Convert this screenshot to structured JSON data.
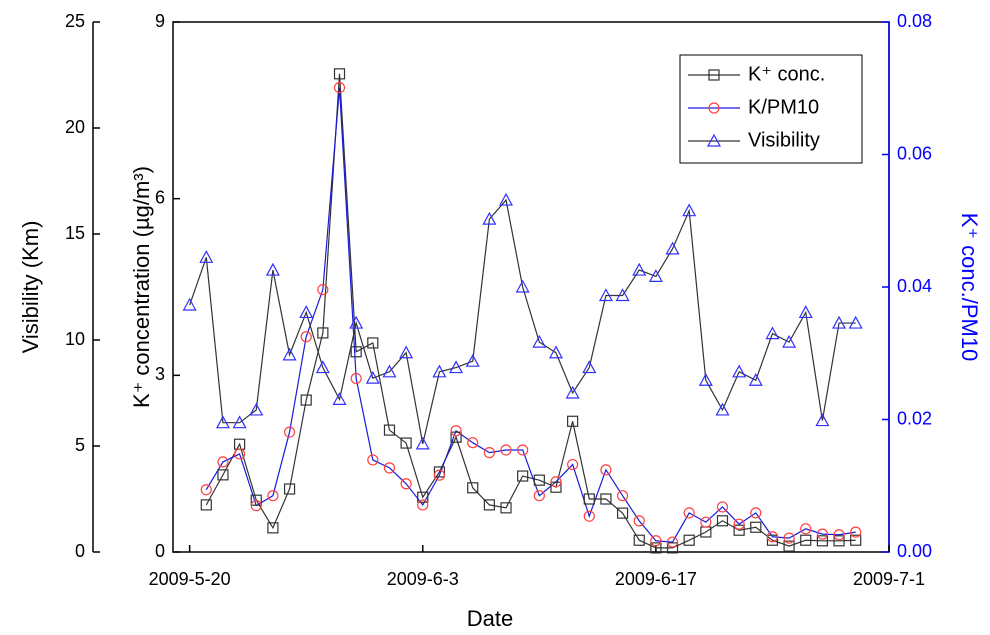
{
  "chart_data": {
    "type": "line",
    "x_label": "Date",
    "y_label": "K⁺ concentration (µg/m³)",
    "y2_label": "K⁺ conc./PM10",
    "y3_label": "Visibility (Km)",
    "x": [
      "2009-5-20",
      "2009-5-21",
      "2009-5-22",
      "2009-5-23",
      "2009-5-24",
      "2009-5-25",
      "2009-5-26",
      "2009-5-27",
      "2009-5-28",
      "2009-5-29",
      "2009-5-30",
      "2009-5-31",
      "2009-6-1",
      "2009-6-2",
      "2009-6-3",
      "2009-6-4",
      "2009-6-5",
      "2009-6-6",
      "2009-6-7",
      "2009-6-8",
      "2009-6-9",
      "2009-6-10",
      "2009-6-11",
      "2009-6-12",
      "2009-6-13",
      "2009-6-14",
      "2009-6-15",
      "2009-6-16",
      "2009-6-17",
      "2009-6-18",
      "2009-6-19",
      "2009-6-20",
      "2009-6-21",
      "2009-6-22",
      "2009-6-23",
      "2009-6-24",
      "2009-6-25",
      "2009-6-26",
      "2009-6-27",
      "2009-6-28",
      "2009-6-29"
    ],
    "xlim": [
      "2009-5-19",
      "2009-7-1"
    ],
    "xticks": [
      "2009-5-20",
      "2009-6-3",
      "2009-6-17",
      "2009-7-1"
    ],
    "ylim": [
      0,
      9
    ],
    "yticks": [
      0,
      3,
      6,
      9
    ],
    "y2lim": [
      0,
      0.08
    ],
    "y2ticks": [
      {
        "value": 0,
        "label": "0.00"
      },
      {
        "value": 0.02,
        "label": "0.02"
      },
      {
        "value": 0.04,
        "label": "0.04"
      },
      {
        "value": 0.06,
        "label": "0.06"
      },
      {
        "value": 0.08,
        "label": "0.08"
      }
    ],
    "y2_color": "#0000ff",
    "y3lim": [
      0,
      25
    ],
    "y3ticks": [
      0,
      5,
      10,
      15,
      20,
      25
    ],
    "legend": "top-right",
    "series": [
      {
        "name": "K⁺ conc.",
        "color": "#333333",
        "marker": "square",
        "marker_color": "#333333",
        "values": [
          null,
          0.8,
          1.31,
          1.83,
          0.88,
          0.41,
          1.07,
          2.58,
          3.72,
          8.12,
          3.4,
          3.55,
          2.07,
          1.85,
          0.93,
          1.36,
          1.95,
          1.09,
          0.8,
          0.75,
          1.29,
          1.22,
          1.1,
          2.22,
          0.9,
          0.9,
          0.66,
          0.2,
          0.07,
          0.07,
          0.2,
          0.34,
          0.53,
          0.37,
          0.42,
          0.2,
          0.1,
          0.2,
          0.19,
          0.19,
          0.2
        ]
      },
      {
        "name": "K/PM10",
        "color": "#1a1adb",
        "marker": "circle",
        "marker_color": "#ff4040",
        "axis": "y2",
        "values": [
          null,
          0.0094,
          0.0136,
          0.0148,
          0.007,
          0.0085,
          0.0181,
          0.0325,
          0.0396,
          0.0701,
          0.0262,
          0.0139,
          0.0127,
          0.0103,
          0.0071,
          0.0116,
          0.0183,
          0.0165,
          0.015,
          0.0154,
          0.0154,
          0.0085,
          0.0106,
          0.0132,
          0.0054,
          0.0124,
          0.0085,
          0.0047,
          0.0017,
          0.0015,
          0.0059,
          0.0045,
          0.0068,
          0.0042,
          0.0059,
          0.0023,
          0.0021,
          0.0035,
          0.0027,
          0.0026,
          0.003
        ]
      },
      {
        "name": "Visibility",
        "color": "#333333",
        "marker": "triangle",
        "marker_color": "#3030ff",
        "axis": "y3",
        "values": [
          11.65,
          13.9,
          6.1,
          6.1,
          6.7,
          13.3,
          9.3,
          11.3,
          8.7,
          7.2,
          10.8,
          8.2,
          8.5,
          9.4,
          5.1,
          8.5,
          8.7,
          9.0,
          15.7,
          16.6,
          12.5,
          9.9,
          9.4,
          7.5,
          8.7,
          12.1,
          12.1,
          13.3,
          13.0,
          14.3,
          16.1,
          8.1,
          6.7,
          8.5,
          8.1,
          10.3,
          9.9,
          11.3,
          6.2,
          10.8,
          10.8
        ]
      }
    ]
  }
}
